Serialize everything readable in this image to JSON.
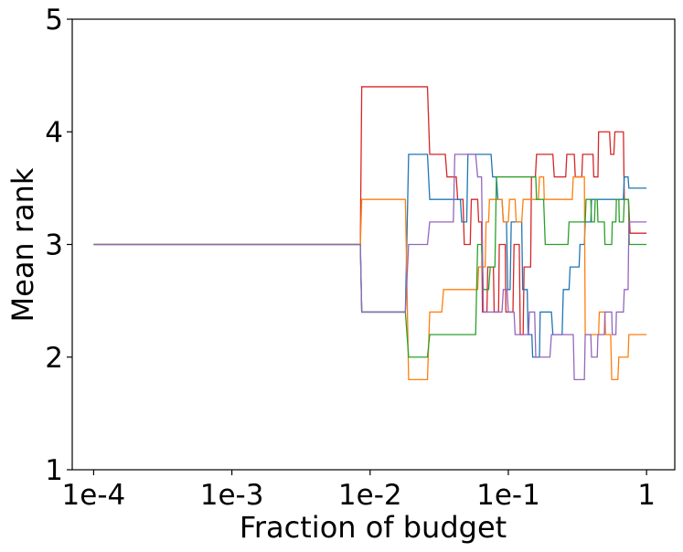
{
  "chart_data": {
    "type": "line",
    "xlabel": "Fraction of budget",
    "ylabel": "Mean rank",
    "xscale": "log",
    "xlim": [
      7e-05,
      1.6
    ],
    "ylim": [
      1,
      5
    ],
    "x_ticks": [
      {
        "value": 0.0001,
        "label": "1e-4"
      },
      {
        "value": 0.001,
        "label": "1e-3"
      },
      {
        "value": 0.01,
        "label": "1e-2"
      },
      {
        "value": 0.1,
        "label": "1e-1"
      },
      {
        "value": 1,
        "label": "1"
      }
    ],
    "y_ticks": [
      {
        "value": 1,
        "label": "1"
      },
      {
        "value": 2,
        "label": "2"
      },
      {
        "value": 3,
        "label": "3"
      },
      {
        "value": 4,
        "label": "4"
      },
      {
        "value": 5,
        "label": "5"
      }
    ],
    "grid": false,
    "series": [
      {
        "color": "#d62728",
        "points": [
          [
            0.0001,
            3
          ],
          [
            0.0085,
            3
          ],
          [
            0.0087,
            4.4
          ],
          [
            0.026,
            4.4
          ],
          [
            0.027,
            3.8
          ],
          [
            0.035,
            3.8
          ],
          [
            0.036,
            3.6
          ],
          [
            0.042,
            3.6
          ],
          [
            0.043,
            3.4
          ],
          [
            0.047,
            3.4
          ],
          [
            0.048,
            3.0
          ],
          [
            0.053,
            3.0
          ],
          [
            0.054,
            3.4
          ],
          [
            0.06,
            3.4
          ],
          [
            0.061,
            3.2
          ],
          [
            0.064,
            3.2
          ],
          [
            0.065,
            2.4
          ],
          [
            0.07,
            2.4
          ],
          [
            0.071,
            2.8
          ],
          [
            0.078,
            2.8
          ],
          [
            0.079,
            2.4
          ],
          [
            0.085,
            2.4
          ],
          [
            0.086,
            3.0
          ],
          [
            0.095,
            3.0
          ],
          [
            0.096,
            2.4
          ],
          [
            0.108,
            2.4
          ],
          [
            0.11,
            3.0
          ],
          [
            0.12,
            3.0
          ],
          [
            0.122,
            2.2
          ],
          [
            0.128,
            2.2
          ],
          [
            0.13,
            2.8
          ],
          [
            0.145,
            2.8
          ],
          [
            0.147,
            3.6
          ],
          [
            0.157,
            3.6
          ],
          [
            0.16,
            3.8
          ],
          [
            0.21,
            3.8
          ],
          [
            0.215,
            3.6
          ],
          [
            0.26,
            3.6
          ],
          [
            0.265,
            3.8
          ],
          [
            0.3,
            3.8
          ],
          [
            0.305,
            3.6
          ],
          [
            0.34,
            3.6
          ],
          [
            0.345,
            3.8
          ],
          [
            0.41,
            3.8
          ],
          [
            0.415,
            3.6
          ],
          [
            0.445,
            3.6
          ],
          [
            0.45,
            4.0
          ],
          [
            0.54,
            4.0
          ],
          [
            0.55,
            3.8
          ],
          [
            0.58,
            3.8
          ],
          [
            0.59,
            4.0
          ],
          [
            0.68,
            4.0
          ],
          [
            0.69,
            3.4
          ],
          [
            0.74,
            3.4
          ],
          [
            0.76,
            3.1
          ],
          [
            1.0,
            3.1
          ]
        ]
      },
      {
        "color": "#1f77b4",
        "points": [
          [
            0.0001,
            3
          ],
          [
            0.0085,
            3
          ],
          [
            0.0087,
            2.4
          ],
          [
            0.018,
            2.4
          ],
          [
            0.019,
            3.8
          ],
          [
            0.026,
            3.8
          ],
          [
            0.027,
            3.4
          ],
          [
            0.045,
            3.4
          ],
          [
            0.046,
            3.2
          ],
          [
            0.05,
            3.2
          ],
          [
            0.051,
            3.8
          ],
          [
            0.075,
            3.8
          ],
          [
            0.077,
            3.6
          ],
          [
            0.082,
            3.6
          ],
          [
            0.084,
            3.4
          ],
          [
            0.09,
            3.4
          ],
          [
            0.092,
            3.2
          ],
          [
            0.097,
            3.2
          ],
          [
            0.099,
            2.6
          ],
          [
            0.103,
            2.6
          ],
          [
            0.105,
            3.2
          ],
          [
            0.125,
            3.2
          ],
          [
            0.127,
            2.6
          ],
          [
            0.137,
            2.6
          ],
          [
            0.139,
            2.2
          ],
          [
            0.148,
            2.2
          ],
          [
            0.15,
            2.0
          ],
          [
            0.168,
            2.0
          ],
          [
            0.17,
            2.4
          ],
          [
            0.205,
            2.4
          ],
          [
            0.21,
            2.2
          ],
          [
            0.245,
            2.2
          ],
          [
            0.25,
            2.6
          ],
          [
            0.275,
            2.6
          ],
          [
            0.28,
            2.8
          ],
          [
            0.325,
            2.8
          ],
          [
            0.33,
            3.0
          ],
          [
            0.355,
            3.0
          ],
          [
            0.36,
            3.2
          ],
          [
            0.395,
            3.2
          ],
          [
            0.4,
            3.4
          ],
          [
            0.68,
            3.4
          ],
          [
            0.69,
            3.6
          ],
          [
            0.735,
            3.6
          ],
          [
            0.745,
            3.5
          ],
          [
            1.0,
            3.5
          ]
        ]
      },
      {
        "color": "#ff7f0e",
        "points": [
          [
            0.0001,
            3
          ],
          [
            0.0085,
            3
          ],
          [
            0.0087,
            3.4
          ],
          [
            0.018,
            3.4
          ],
          [
            0.019,
            1.8
          ],
          [
            0.026,
            1.8
          ],
          [
            0.027,
            2.4
          ],
          [
            0.033,
            2.4
          ],
          [
            0.034,
            2.6
          ],
          [
            0.06,
            2.6
          ],
          [
            0.061,
            2.8
          ],
          [
            0.068,
            2.8
          ],
          [
            0.069,
            3.2
          ],
          [
            0.072,
            3.2
          ],
          [
            0.073,
            3.4
          ],
          [
            0.09,
            3.4
          ],
          [
            0.092,
            3.2
          ],
          [
            0.1,
            3.2
          ],
          [
            0.102,
            3.4
          ],
          [
            0.112,
            3.4
          ],
          [
            0.114,
            3.2
          ],
          [
            0.125,
            3.2
          ],
          [
            0.128,
            3.4
          ],
          [
            0.165,
            3.4
          ],
          [
            0.168,
            3.6
          ],
          [
            0.18,
            3.6
          ],
          [
            0.182,
            3.4
          ],
          [
            0.29,
            3.4
          ],
          [
            0.295,
            3.6
          ],
          [
            0.355,
            3.6
          ],
          [
            0.36,
            2.2
          ],
          [
            0.45,
            2.2
          ],
          [
            0.455,
            2.4
          ],
          [
            0.5,
            2.4
          ],
          [
            0.505,
            2.2
          ],
          [
            0.55,
            2.2
          ],
          [
            0.56,
            1.8
          ],
          [
            0.62,
            1.8
          ],
          [
            0.63,
            2.0
          ],
          [
            0.735,
            2.0
          ],
          [
            0.745,
            2.2
          ],
          [
            1.0,
            2.2
          ]
        ]
      },
      {
        "color": "#2ca02c",
        "points": [
          [
            0.0001,
            3
          ],
          [
            0.0085,
            3
          ],
          [
            0.0087,
            2.4
          ],
          [
            0.018,
            2.4
          ],
          [
            0.019,
            2.0
          ],
          [
            0.026,
            2.0
          ],
          [
            0.027,
            2.2
          ],
          [
            0.058,
            2.2
          ],
          [
            0.06,
            3.0
          ],
          [
            0.064,
            3.0
          ],
          [
            0.066,
            2.6
          ],
          [
            0.072,
            2.6
          ],
          [
            0.074,
            2.8
          ],
          [
            0.08,
            2.8
          ],
          [
            0.082,
            3.6
          ],
          [
            0.158,
            3.6
          ],
          [
            0.16,
            3.4
          ],
          [
            0.18,
            3.4
          ],
          [
            0.185,
            3.0
          ],
          [
            0.27,
            3.0
          ],
          [
            0.275,
            3.2
          ],
          [
            0.36,
            3.2
          ],
          [
            0.365,
            3.4
          ],
          [
            0.395,
            3.4
          ],
          [
            0.4,
            3.2
          ],
          [
            0.42,
            3.2
          ],
          [
            0.425,
            3.4
          ],
          [
            0.44,
            3.4
          ],
          [
            0.445,
            3.2
          ],
          [
            0.495,
            3.2
          ],
          [
            0.5,
            3.0
          ],
          [
            0.56,
            3.0
          ],
          [
            0.565,
            3.2
          ],
          [
            0.6,
            3.2
          ],
          [
            0.605,
            3.4
          ],
          [
            0.63,
            3.4
          ],
          [
            0.635,
            3.2
          ],
          [
            0.68,
            3.2
          ],
          [
            0.69,
            3.4
          ],
          [
            0.74,
            3.4
          ],
          [
            0.75,
            3.0
          ],
          [
            1.0,
            3.0
          ]
        ]
      },
      {
        "color": "#9467bd",
        "points": [
          [
            0.0001,
            3
          ],
          [
            0.0085,
            3
          ],
          [
            0.0087,
            2.4
          ],
          [
            0.018,
            2.4
          ],
          [
            0.019,
            3.0
          ],
          [
            0.026,
            3.0
          ],
          [
            0.027,
            3.2
          ],
          [
            0.04,
            3.2
          ],
          [
            0.041,
            3.8
          ],
          [
            0.058,
            3.8
          ],
          [
            0.06,
            3.6
          ],
          [
            0.064,
            3.6
          ],
          [
            0.066,
            2.4
          ],
          [
            0.09,
            2.4
          ],
          [
            0.092,
            2.6
          ],
          [
            0.098,
            2.6
          ],
          [
            0.1,
            2.4
          ],
          [
            0.11,
            2.4
          ],
          [
            0.112,
            2.2
          ],
          [
            0.14,
            2.2
          ],
          [
            0.142,
            2.4
          ],
          [
            0.155,
            2.4
          ],
          [
            0.158,
            2.0
          ],
          [
            0.2,
            2.0
          ],
          [
            0.205,
            2.2
          ],
          [
            0.295,
            2.2
          ],
          [
            0.3,
            1.8
          ],
          [
            0.355,
            1.8
          ],
          [
            0.36,
            2.2
          ],
          [
            0.395,
            2.2
          ],
          [
            0.4,
            2.0
          ],
          [
            0.44,
            2.0
          ],
          [
            0.445,
            2.2
          ],
          [
            0.495,
            2.2
          ],
          [
            0.5,
            2.4
          ],
          [
            0.56,
            2.4
          ],
          [
            0.565,
            2.2
          ],
          [
            0.6,
            2.2
          ],
          [
            0.605,
            2.4
          ],
          [
            0.68,
            2.4
          ],
          [
            0.69,
            2.6
          ],
          [
            0.735,
            2.6
          ],
          [
            0.745,
            3.2
          ],
          [
            1.0,
            3.2
          ]
        ]
      }
    ]
  }
}
